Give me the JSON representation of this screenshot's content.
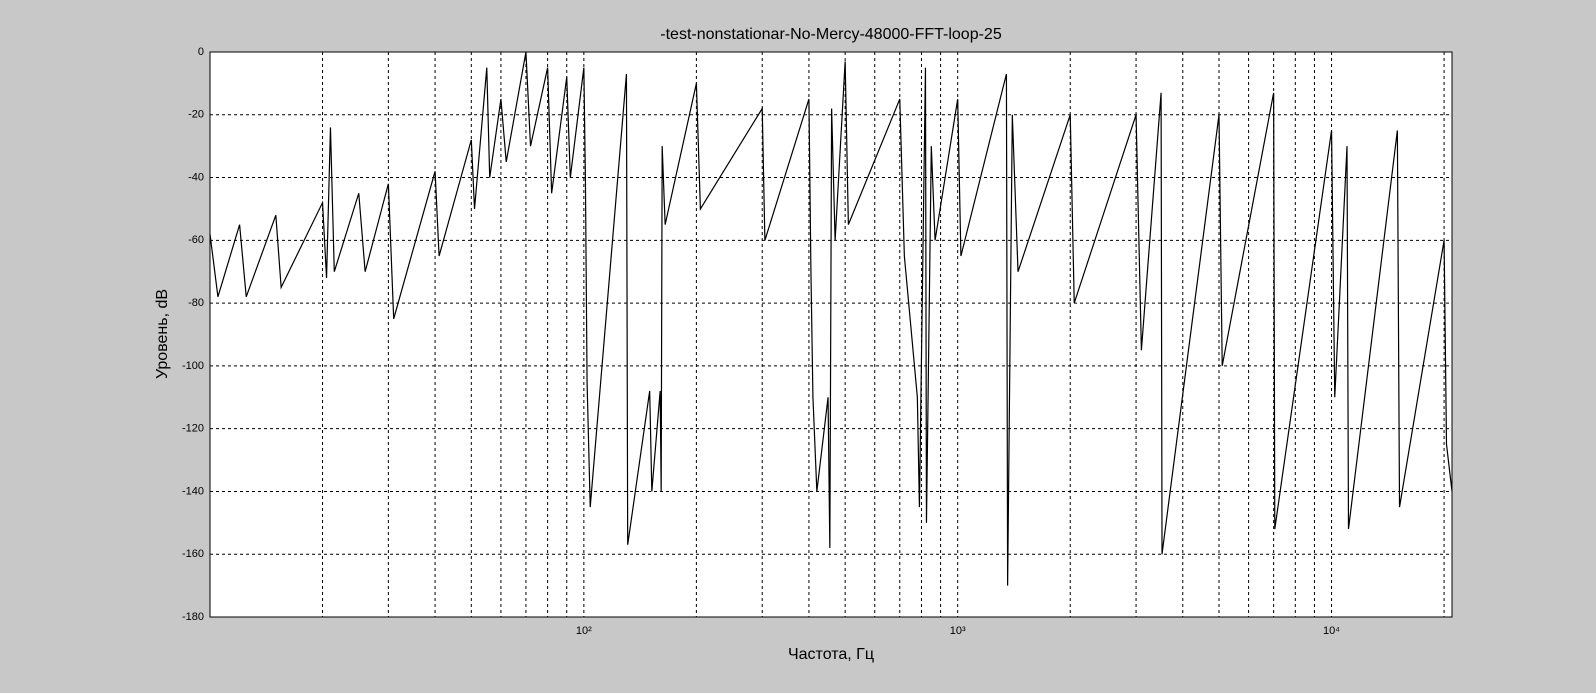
{
  "chart_data": {
    "type": "line",
    "title": "-test-nonstationar-No-Mercy-48000-FFT-loop-25",
    "xlabel": "Частота, Гц",
    "ylabel": "Уровень, dB",
    "xscale": "log",
    "grid": true,
    "x": [
      10,
      10.5,
      12,
      12.5,
      15,
      15.5,
      20,
      20.5,
      21,
      21.5,
      25,
      26,
      30,
      31,
      40,
      41,
      50,
      51,
      55,
      56,
      60,
      62,
      70,
      72,
      80,
      82,
      90,
      92,
      100,
      101,
      102,
      104,
      130,
      131,
      150,
      152,
      160,
      161,
      162,
      165,
      200,
      205,
      300,
      305,
      400,
      405,
      410,
      420,
      450,
      455,
      460,
      470,
      500,
      510,
      700,
      720,
      780,
      790,
      820,
      825,
      850,
      870,
      1000,
      1020,
      1350,
      1360,
      1400,
      1450,
      2000,
      2050,
      3000,
      3100,
      3500,
      3520,
      5000,
      5100,
      7000,
      7050,
      10000,
      10200,
      11000,
      11100,
      15000,
      15200,
      20000,
      20300,
      21000
    ],
    "series": [
      {
        "color": "#000000",
        "values": [
          -58,
          -78,
          -55,
          -78,
          -52,
          -75,
          -48,
          -72,
          -24,
          -70,
          -45,
          -70,
          -42,
          -85,
          -38,
          -65,
          -28,
          -50,
          -5,
          -40,
          -15,
          -35,
          0,
          -30,
          -5,
          -45,
          -8,
          -40,
          -5,
          -42,
          -105,
          -145,
          -7,
          -157,
          -108,
          -140,
          -108,
          -140,
          -30,
          -55,
          -10,
          -50,
          -18,
          -60,
          -15,
          -70,
          -110,
          -140,
          -110,
          -158,
          -18,
          -60,
          -3,
          -55,
          -15,
          -65,
          -110,
          -145,
          -5,
          -150,
          -30,
          -60,
          -15,
          -65,
          -7,
          -170,
          -20,
          -70,
          -20,
          -80,
          -20,
          -95,
          -13,
          -160,
          -20,
          -100,
          -13,
          -152,
          -25,
          -110,
          -30,
          -152,
          -25,
          -145,
          -60,
          -125,
          -140
        ]
      }
    ],
    "xlim": [
      10,
      21000
    ],
    "xticks": [
      {
        "value": 100,
        "label": "10²"
      },
      {
        "value": 1000,
        "label": "10³"
      },
      {
        "value": 10000,
        "label": "10⁴"
      }
    ],
    "xminorticks": [
      20,
      30,
      40,
      50,
      60,
      70,
      80,
      90,
      200,
      300,
      400,
      500,
      600,
      700,
      800,
      900,
      2000,
      3000,
      4000,
      5000,
      6000,
      7000,
      8000,
      9000,
      20000
    ],
    "ylim": [
      -180,
      0
    ],
    "yticks": [
      -180,
      -160,
      -140,
      -120,
      -100,
      -80,
      -60,
      -40,
      -20,
      0
    ]
  }
}
